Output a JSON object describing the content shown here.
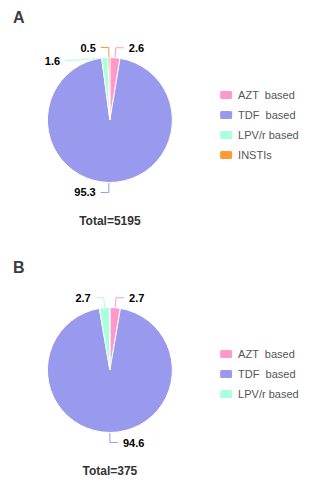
{
  "chart_data": [
    {
      "type": "pie",
      "title": "A",
      "subtitle": "Total=5195",
      "categories": [
        "AZT  based",
        "TDF  based",
        "LPV/r based",
        "INSTIs"
      ],
      "values": [
        2.6,
        95.3,
        1.6,
        0.5
      ],
      "colors": [
        "#FF99CC",
        "#9999EE",
        "#AAFFDD",
        "#FF9933"
      ],
      "data_labels": true,
      "legend": "right"
    },
    {
      "type": "pie",
      "title": "B",
      "subtitle": "Total=375",
      "categories": [
        "AZT  based",
        "TDF  based",
        "LPV/r based"
      ],
      "values": [
        2.7,
        94.6,
        2.7
      ],
      "colors": [
        "#FF99CC",
        "#9999EE",
        "#AAFFDD"
      ],
      "data_labels": true,
      "legend": "right"
    }
  ]
}
